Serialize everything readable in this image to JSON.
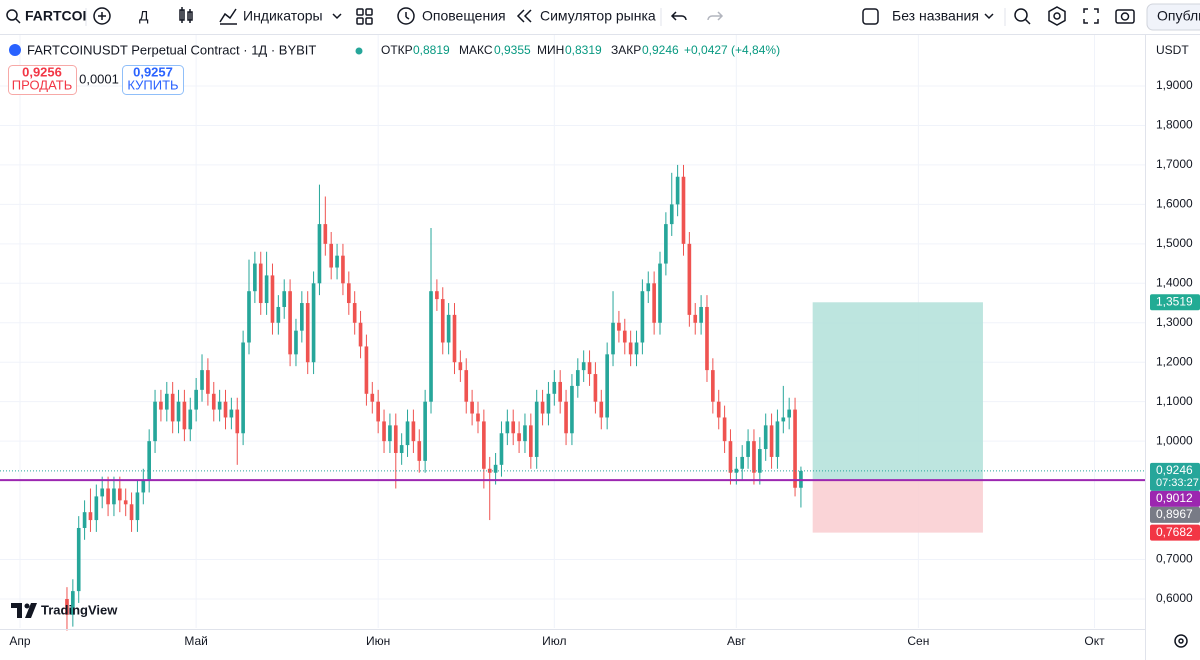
{
  "toolbar": {
    "symbol": "FARTCOI",
    "interval": "Д",
    "indicators": "Индикаторы",
    "alerts": "Оповещения",
    "replay": "Симулятор рынка",
    "layout_name": "Без названия",
    "publish": "Опубли"
  },
  "legend": {
    "title": "FARTCOINUSDT Perpetual Contract · 1Д · BYBIT",
    "open_label": "ОТКР",
    "open": "0,8819",
    "high_label": "МАКС",
    "high": "0,9355",
    "low_label": "МИН",
    "low": "0,8319",
    "close_label": "ЗАКР",
    "close": "0,9246",
    "change": "+0,0427 (+4,84%)"
  },
  "trade": {
    "sell_price": "0,9256",
    "sell_label": "ПРОДАТЬ",
    "spread": "0,0001",
    "buy_price": "0,9257",
    "buy_label": "КУПИТЬ"
  },
  "watermark": "TradingView",
  "chart_data": {
    "type": "candlestick",
    "currency": "USDT",
    "x": [
      8,
      9,
      10,
      11,
      12,
      13,
      14,
      15,
      16,
      17,
      18,
      19,
      20,
      21,
      22,
      23,
      24,
      25,
      26,
      27,
      28,
      29,
      30,
      31,
      32,
      33,
      34,
      35,
      36,
      37,
      38,
      39,
      40,
      41,
      42,
      43,
      44,
      45,
      46,
      47,
      48,
      49,
      50,
      51,
      52,
      53,
      54,
      55,
      56,
      57,
      58,
      59,
      60,
      61,
      62,
      63,
      64,
      65,
      66,
      67,
      68,
      69,
      70,
      71,
      72,
      73,
      74,
      75,
      76,
      77,
      78,
      79,
      80,
      81,
      82,
      83,
      84,
      85,
      86,
      87,
      88,
      89,
      90,
      91,
      92,
      93,
      94,
      95,
      96,
      97,
      98,
      99,
      100,
      101,
      102,
      103,
      104,
      105,
      106,
      107,
      108,
      109,
      110,
      111,
      112,
      113,
      114,
      115,
      116,
      117,
      118,
      119,
      120,
      121,
      122,
      123,
      124,
      125,
      126,
      127,
      128,
      129,
      130,
      131,
      132,
      133
    ],
    "open": [
      0.6,
      0.56,
      0.62,
      0.78,
      0.82,
      0.8,
      0.86,
      0.88,
      0.84,
      0.88,
      0.85,
      0.84,
      0.8,
      0.87,
      0.9,
      1.0,
      1.1,
      1.08,
      1.12,
      1.05,
      1.1,
      1.03,
      1.08,
      1.13,
      1.18,
      1.12,
      1.08,
      1.1,
      1.06,
      1.08,
      1.02,
      1.25,
      1.38,
      1.45,
      1.35,
      1.42,
      1.3,
      1.34,
      1.38,
      1.22,
      1.28,
      1.35,
      1.2,
      1.4,
      1.55,
      1.5,
      1.44,
      1.47,
      1.4,
      1.35,
      1.3,
      1.24,
      1.12,
      1.1,
      1.05,
      1.0,
      1.04,
      0.97,
      0.99,
      1.05,
      1.0,
      0.95,
      1.1,
      1.38,
      1.36,
      1.25,
      1.32,
      1.2,
      1.18,
      1.1,
      1.07,
      1.05,
      0.93,
      0.92,
      0.94,
      1.02,
      1.05,
      1.02,
      1.0,
      1.04,
      0.96,
      1.1,
      1.07,
      1.12,
      1.15,
      1.1,
      1.02,
      1.14,
      1.18,
      1.2,
      1.17,
      1.1,
      1.06,
      1.22,
      1.3,
      1.28,
      1.25,
      1.22,
      1.25,
      1.38,
      1.4,
      1.3,
      1.45,
      1.55,
      1.6,
      1.67,
      1.5,
      1.32,
      1.3,
      1.34,
      1.18,
      1.1,
      1.06,
      1.0,
      0.92,
      0.93,
      0.96,
      1.0,
      0.92,
      0.98,
      1.04,
      0.96,
      1.05,
      1.06,
      1.08,
      0.8819
    ],
    "high": [
      0.63,
      0.65,
      0.81,
      0.85,
      0.88,
      0.89,
      0.91,
      0.91,
      0.91,
      0.91,
      0.88,
      0.87,
      0.9,
      0.93,
      1.03,
      1.13,
      1.13,
      1.15,
      1.15,
      1.13,
      1.13,
      1.11,
      1.16,
      1.22,
      1.21,
      1.15,
      1.13,
      1.13,
      1.11,
      1.11,
      1.28,
      1.46,
      1.48,
      1.48,
      1.48,
      1.45,
      1.37,
      1.41,
      1.41,
      1.31,
      1.38,
      1.38,
      1.43,
      1.65,
      1.62,
      1.53,
      1.5,
      1.5,
      1.43,
      1.38,
      1.33,
      1.27,
      1.15,
      1.13,
      1.08,
      1.07,
      1.07,
      1.02,
      1.08,
      1.08,
      1.03,
      1.13,
      1.54,
      1.41,
      1.39,
      1.35,
      1.35,
      1.23,
      1.21,
      1.13,
      1.1,
      1.08,
      0.96,
      0.97,
      1.05,
      1.08,
      1.08,
      1.05,
      1.07,
      1.07,
      1.13,
      1.13,
      1.15,
      1.18,
      1.18,
      1.13,
      1.17,
      1.21,
      1.23,
      1.23,
      1.2,
      1.13,
      1.25,
      1.38,
      1.33,
      1.31,
      1.28,
      1.28,
      1.41,
      1.43,
      1.43,
      1.48,
      1.58,
      1.68,
      1.7,
      1.7,
      1.53,
      1.35,
      1.37,
      1.37,
      1.21,
      1.13,
      1.09,
      1.03,
      0.96,
      0.99,
      1.03,
      1.03,
      1.01,
      1.07,
      1.07,
      1.08,
      1.14,
      1.11,
      1.11,
      0.9355
    ],
    "low": [
      0.52,
      0.53,
      0.59,
      0.75,
      0.77,
      0.77,
      0.83,
      0.81,
      0.81,
      0.82,
      0.81,
      0.77,
      0.77,
      0.84,
      0.87,
      0.97,
      1.05,
      1.05,
      1.02,
      1.02,
      1.0,
      1.0,
      1.05,
      1.1,
      1.09,
      1.05,
      1.05,
      1.03,
      1.03,
      0.94,
      0.99,
      1.22,
      1.35,
      1.32,
      1.32,
      1.27,
      1.27,
      1.31,
      1.19,
      1.19,
      1.25,
      1.17,
      1.17,
      1.37,
      1.47,
      1.41,
      1.41,
      1.37,
      1.32,
      1.27,
      1.21,
      1.09,
      1.07,
      1.02,
      0.97,
      0.97,
      0.88,
      0.94,
      0.96,
      0.97,
      0.92,
      0.92,
      1.07,
      1.33,
      1.22,
      1.22,
      1.17,
      1.15,
      1.07,
      1.04,
      1.02,
      0.88,
      0.8,
      0.89,
      0.91,
      0.99,
      0.99,
      0.97,
      0.97,
      0.93,
      0.93,
      1.04,
      1.04,
      1.09,
      1.07,
      0.99,
      0.99,
      1.11,
      1.15,
      1.14,
      1.07,
      1.03,
      1.03,
      1.19,
      1.25,
      1.22,
      1.19,
      1.19,
      1.22,
      1.35,
      1.27,
      1.27,
      1.42,
      1.52,
      1.57,
      1.47,
      1.29,
      1.27,
      1.27,
      1.15,
      1.07,
      1.03,
      0.97,
      0.89,
      0.89,
      0.9,
      0.93,
      0.89,
      0.89,
      0.95,
      0.93,
      0.93,
      1.02,
      1.03,
      0.86,
      0.8319
    ],
    "close": [
      0.56,
      0.62,
      0.78,
      0.82,
      0.8,
      0.86,
      0.88,
      0.84,
      0.88,
      0.85,
      0.84,
      0.8,
      0.87,
      0.9,
      1.0,
      1.1,
      1.08,
      1.12,
      1.05,
      1.1,
      1.03,
      1.08,
      1.13,
      1.18,
      1.12,
      1.08,
      1.1,
      1.06,
      1.08,
      1.02,
      1.25,
      1.38,
      1.45,
      1.35,
      1.42,
      1.3,
      1.34,
      1.38,
      1.22,
      1.28,
      1.35,
      1.2,
      1.4,
      1.55,
      1.5,
      1.44,
      1.47,
      1.4,
      1.35,
      1.3,
      1.24,
      1.12,
      1.1,
      1.05,
      1.0,
      1.04,
      0.97,
      0.99,
      1.05,
      1.0,
      0.95,
      1.1,
      1.38,
      1.36,
      1.25,
      1.32,
      1.2,
      1.18,
      1.1,
      1.07,
      1.05,
      0.93,
      0.92,
      0.94,
      1.02,
      1.05,
      1.02,
      1.0,
      1.04,
      0.96,
      1.1,
      1.07,
      1.12,
      1.15,
      1.1,
      1.02,
      1.14,
      1.18,
      1.2,
      1.17,
      1.1,
      1.06,
      1.22,
      1.3,
      1.28,
      1.25,
      1.22,
      1.25,
      1.38,
      1.4,
      1.3,
      1.45,
      1.55,
      1.6,
      1.67,
      1.5,
      1.32,
      1.3,
      1.34,
      1.18,
      1.1,
      1.06,
      1.0,
      0.92,
      0.93,
      0.96,
      1.0,
      0.92,
      0.98,
      1.04,
      0.96,
      1.05,
      1.06,
      1.08,
      0.8819,
      0.9246
    ],
    "up_color": "#26a69a",
    "down_color": "#ef5350",
    "xlim": [
      0,
      191.6
    ],
    "xticks": [
      {
        "value": 0,
        "label": "Апр"
      },
      {
        "value": 30,
        "label": "Май"
      },
      {
        "value": 61,
        "label": "Июн"
      },
      {
        "value": 91,
        "label": "Июл"
      },
      {
        "value": 122,
        "label": "Авг"
      },
      {
        "value": 153,
        "label": "Сен"
      },
      {
        "value": 183,
        "label": "Окт"
      }
    ],
    "ylim": [
      0.5265,
      1.9608
    ],
    "yticks": [
      {
        "value": 0.6,
        "label": "0,6000"
      },
      {
        "value": 0.7,
        "label": "0,7000"
      },
      {
        "value": 1.0,
        "label": "1,0000"
      },
      {
        "value": 1.1,
        "label": "1,1000"
      },
      {
        "value": 1.2,
        "label": "1,2000"
      },
      {
        "value": 1.3,
        "label": "1,3000"
      },
      {
        "value": 1.4,
        "label": "1,4000"
      },
      {
        "value": 1.5,
        "label": "1,5000"
      },
      {
        "value": 1.6,
        "label": "1,6000"
      },
      {
        "value": 1.7,
        "label": "1,7000"
      },
      {
        "value": 1.8,
        "label": "1,8000"
      },
      {
        "value": 1.9,
        "label": "1,9000"
      }
    ],
    "grid": true,
    "horizontal_line": {
      "value": 0.9012,
      "color": "#9c27b0"
    },
    "position": {
      "x": [
        135,
        164
      ],
      "entry": 0.9012,
      "target": 1.3519,
      "stop": 0.7682,
      "profit_color": "#b2e0d9",
      "loss_color": "#f9cdd0"
    },
    "price_labels": [
      {
        "value": 1.3519,
        "label": "1,3519",
        "color": "#22ab94"
      },
      {
        "value": 0.9246,
        "label": "0,9246",
        "color": "#26a69a"
      },
      {
        "value": 0.9012,
        "label": "0,9012",
        "color": "#9c27b0"
      },
      {
        "value": 0.8967,
        "label": "0,8967",
        "color": "#787b86"
      },
      {
        "value": 0.7682,
        "label": "0,7682",
        "color": "#f23645"
      }
    ],
    "countdown": "07:33:27"
  }
}
